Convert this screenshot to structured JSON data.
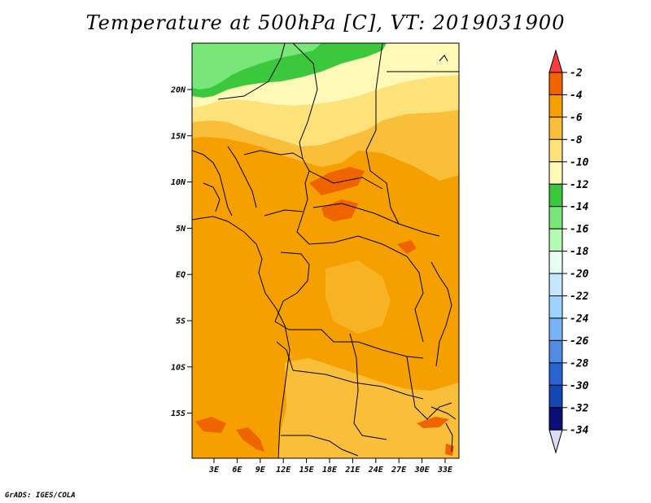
{
  "title": "Temperature at 500hPa [C], VT: 2019031900",
  "credit": "GrADS: IGES/COLA",
  "map": {
    "lat_ticks": [
      "20N",
      "15N",
      "10N",
      "5N",
      "EQ",
      "5S",
      "10S",
      "15S"
    ],
    "lon_ticks": [
      "3E",
      "6E",
      "9E",
      "12E",
      "15E",
      "18E",
      "21E",
      "24E",
      "27E",
      "30E",
      "33E"
    ]
  },
  "colorbar": {
    "labels": [
      "-2",
      "-4",
      "-6",
      "-8",
      "-10",
      "-12",
      "-14",
      "-16",
      "-18",
      "-20",
      "-22",
      "-24",
      "-26",
      "-28",
      "-30",
      "-32",
      "-34"
    ],
    "colors": [
      "#fa3c3c",
      "#f06400",
      "#f5a000",
      "#f9bf3b",
      "#fde27a",
      "#fff9b8",
      "#3cc83c",
      "#78e678",
      "#b4fab4",
      "#e6fff0",
      "#c4e6ff",
      "#a0d2ff",
      "#78b4f5",
      "#508ce6",
      "#2864d2",
      "#1446b4",
      "#0a0f78",
      "#dcdcf5"
    ]
  },
  "palette": {
    "land_base": "#f5a000",
    "warm_patch": "#f06400",
    "light_orange": "#f9bf3b",
    "pale_yellow": "#fde27a",
    "cream": "#fff9b8",
    "green": "#3cc83c",
    "light_green": "#78e678"
  }
}
